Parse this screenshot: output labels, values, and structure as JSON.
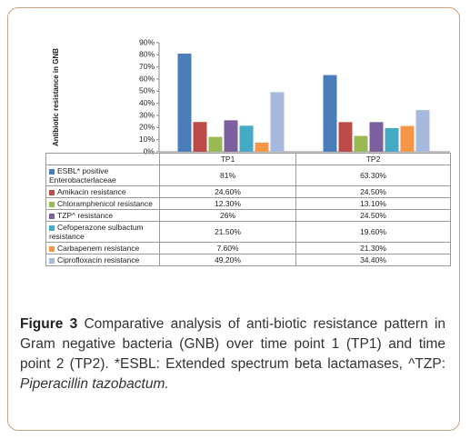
{
  "chart_data": {
    "type": "bar",
    "y_label": "Antibiotic resistance in GNB",
    "categories": [
      "TP1",
      "TP2"
    ],
    "ylim": [
      0,
      90
    ],
    "yticks": [
      {
        "value": 0,
        "label": "0%"
      },
      {
        "value": 10,
        "label": "10%"
      },
      {
        "value": 20,
        "label": "20%"
      },
      {
        "value": 30,
        "label": "30%"
      },
      {
        "value": 40,
        "label": "40%"
      },
      {
        "value": 50,
        "label": "50%"
      },
      {
        "value": 60,
        "label": "60%"
      },
      {
        "value": 70,
        "label": "70%"
      },
      {
        "value": 80,
        "label": "80%"
      },
      {
        "value": 90,
        "label": "90%"
      }
    ],
    "grid": false,
    "series": [
      {
        "name": "ESBL* positive Enterobacterlaceae",
        "color": "#4a7ebb",
        "values": [
          81,
          63.3
        ],
        "value_labels": [
          "81%",
          "63.30%"
        ]
      },
      {
        "name": "Amikacin resistance",
        "color": "#be4b48",
        "values": [
          24.6,
          24.5
        ],
        "value_labels": [
          "24.60%",
          "24.50%"
        ]
      },
      {
        "name": "Chloramphenicol resistance",
        "color": "#98b954",
        "values": [
          12.3,
          13.1
        ],
        "value_labels": [
          "12.30%",
          "13.10%"
        ]
      },
      {
        "name": "TZP^ resistance",
        "color": "#7d60a0",
        "values": [
          26,
          24.5
        ],
        "value_labels": [
          "26%",
          "24.50%"
        ]
      },
      {
        "name": "Cefoperazone sulbactum resistance",
        "color": "#46aac5",
        "values": [
          21.5,
          19.6
        ],
        "value_labels": [
          "21.50%",
          "19.60%"
        ]
      },
      {
        "name": "Carbapenem resistance",
        "color": "#f79646",
        "values": [
          7.6,
          21.3
        ],
        "value_labels": [
          "7.60%",
          "21.30%"
        ]
      },
      {
        "name": "Ciprofloxacin resistance",
        "color": "#a5b9dd",
        "values": [
          49.2,
          34.4
        ],
        "value_labels": [
          "49.20%",
          "34.40%"
        ]
      }
    ]
  },
  "caption": {
    "label": "Figure 3",
    "text": "Comparative analysis of anti-biotic resistance pattern in Gram negative bacteria (GNB) over time point 1 (TP1) and time point 2 (TP2). *ESBL: Extended spectrum beta lactamases, ^TZP:",
    "italic": "Piperacillin tazobactum."
  }
}
